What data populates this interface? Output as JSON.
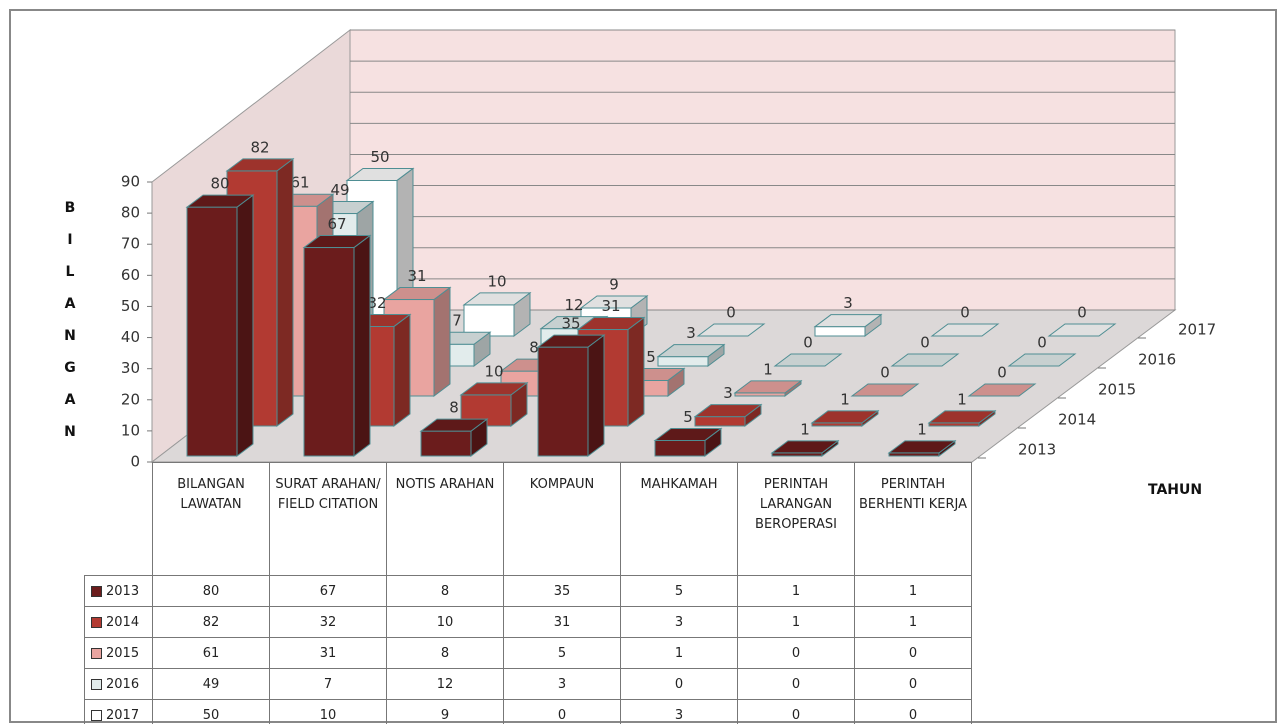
{
  "chart_data": {
    "type": "bar3d",
    "y_label": "BILANGAN",
    "x_label": "TAHUN",
    "categories": [
      "BILANGAN LAWATAN",
      "SURAT ARAHAN/ FIELD CITATION",
      "NOTIS ARAHAN",
      "KOMPAUN",
      "MAHKAMAH",
      "PERINTAH LARANGAN BEROPERASI",
      "PERINTAH BERHENTI KERJA"
    ],
    "series": [
      {
        "name": "2013",
        "color": "#6b1c1c",
        "values": [
          80,
          67,
          8,
          35,
          5,
          1,
          1
        ]
      },
      {
        "name": "2014",
        "color": "#b23a32",
        "values": [
          82,
          32,
          10,
          31,
          3,
          1,
          1
        ]
      },
      {
        "name": "2015",
        "color": "#e9a4a0",
        "values": [
          61,
          31,
          8,
          5,
          1,
          0,
          0
        ]
      },
      {
        "name": "2016",
        "color": "#e2ecec",
        "values": [
          49,
          7,
          12,
          3,
          0,
          0,
          0
        ]
      },
      {
        "name": "2017",
        "color": "#ffffff",
        "values": [
          50,
          10,
          9,
          0,
          3,
          0,
          0
        ]
      }
    ],
    "ylim": [
      0,
      90
    ],
    "yticks": [
      0,
      10,
      20,
      30,
      40,
      50,
      60,
      70,
      80,
      90
    ],
    "grid": true
  }
}
